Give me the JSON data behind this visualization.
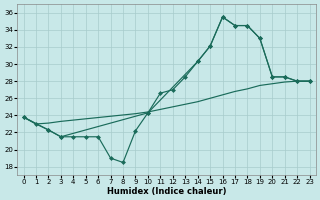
{
  "xlabel": "Humidex (Indice chaleur)",
  "bg_color": "#c8e8e8",
  "grid_color": "#a8cccc",
  "line_color": "#1a6b5a",
  "xlim": [
    -0.5,
    23.5
  ],
  "ylim": [
    17,
    37
  ],
  "yticks": [
    18,
    20,
    22,
    24,
    26,
    28,
    30,
    32,
    34,
    36
  ],
  "xticks": [
    0,
    1,
    2,
    3,
    4,
    5,
    6,
    7,
    8,
    9,
    10,
    11,
    12,
    13,
    14,
    15,
    16,
    17,
    18,
    19,
    20,
    21,
    22,
    23
  ],
  "line1_x": [
    0,
    1,
    2,
    3,
    4,
    5,
    6,
    7,
    8,
    9,
    10,
    11,
    12,
    13,
    14,
    15,
    16,
    17,
    18,
    19,
    20,
    21,
    22,
    23
  ],
  "line1_y": [
    23.8,
    23.0,
    22.3,
    21.5,
    21.5,
    21.5,
    21.5,
    19.0,
    18.5,
    22.2,
    24.3,
    26.6,
    27.0,
    28.5,
    30.3,
    32.1,
    35.5,
    34.5,
    34.5,
    33.0,
    28.5,
    28.5,
    28.0,
    28.0
  ],
  "line2_x": [
    0,
    2,
    3,
    10,
    14,
    15,
    16,
    17,
    18,
    19,
    20,
    21,
    22,
    23
  ],
  "line2_y": [
    23.8,
    22.3,
    21.5,
    24.3,
    30.3,
    32.1,
    35.5,
    34.5,
    34.5,
    33.0,
    28.5,
    28.5,
    28.0,
    28.0
  ],
  "line3_x": [
    0,
    1,
    2,
    3,
    9,
    10,
    11,
    12,
    13,
    14,
    15,
    16,
    17,
    18,
    19,
    20,
    21,
    22,
    23
  ],
  "line3_y": [
    23.8,
    23.0,
    23.1,
    23.3,
    24.2,
    24.4,
    24.7,
    25.0,
    25.3,
    25.6,
    26.0,
    26.4,
    26.8,
    27.1,
    27.5,
    27.7,
    27.9,
    28.0,
    28.0
  ]
}
